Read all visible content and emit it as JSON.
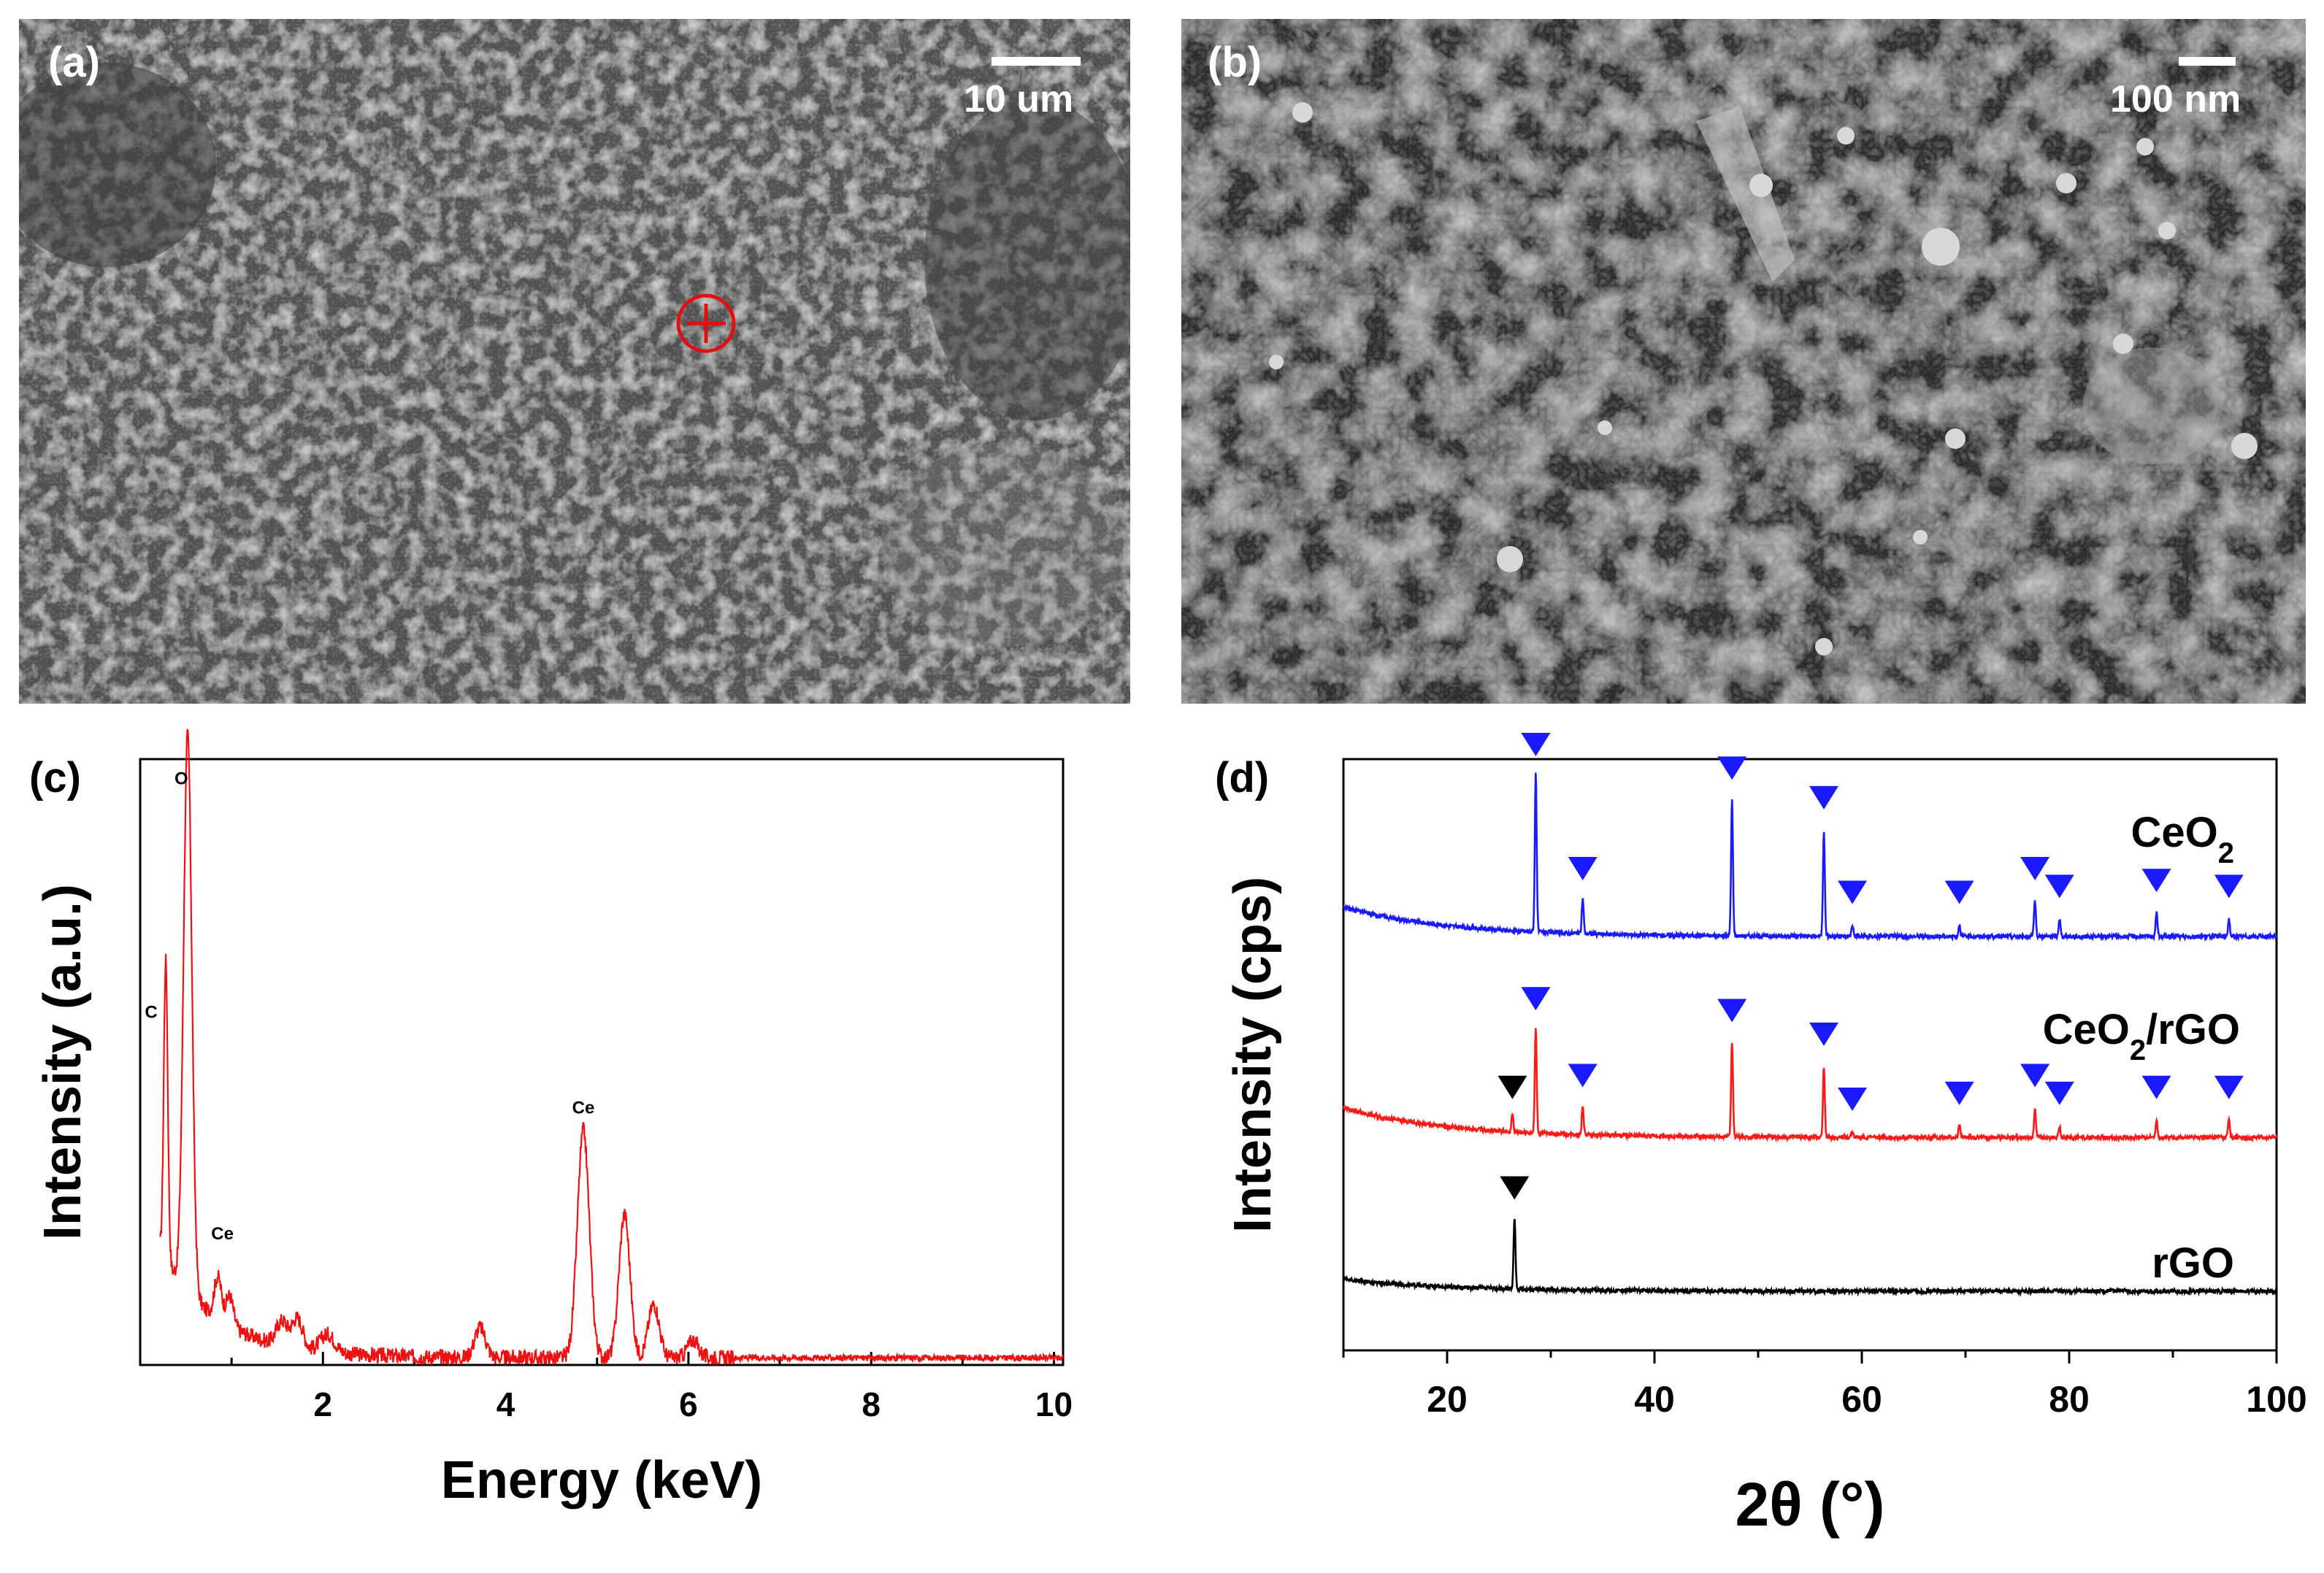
{
  "panels": {
    "a": {
      "label": "(a)",
      "scale_bar": "10 um",
      "description": "SEM image of CeO2/rGO particles; red crosshair marks EDS spot"
    },
    "b": {
      "label": "(b)",
      "scale_bar": "100 nm",
      "description": "High-magnification SEM image of CeO2/rGO sheets with CeO2 nanoparticles"
    },
    "c": {
      "label": "(c)"
    },
    "d": {
      "label": "(d)"
    }
  },
  "colors": {
    "eds_line": "#ee1111",
    "ceo2_line": "#1a1aff",
    "ceo2_rgo_line": "#ff1a1a",
    "rgo_line": "#000000",
    "ceo2_marker": "#1a1aff",
    "rgo_marker": "#000000",
    "crosshair": "#e01010"
  },
  "chart_data": [
    {
      "id": "eds",
      "type": "line",
      "title": "",
      "xlabel": "Energy (keV)",
      "ylabel": "Intensity (a.u.)",
      "xlim": [
        0.0,
        10.1
      ],
      "ylim": [
        0,
        100
      ],
      "xticks": [
        2,
        4,
        6,
        8,
        10
      ],
      "yticks": [],
      "grid": false,
      "legend": "none",
      "series": [
        {
          "name": "EDS spectrum",
          "color": "#ee1111",
          "peaks": [
            {
              "x": 0.28,
              "h": 50,
              "w": 0.022
            },
            {
              "x": 0.52,
              "h": 93,
              "w": 0.045
            },
            {
              "x": 0.85,
              "h": 7,
              "w": 0.04
            },
            {
              "x": 0.98,
              "h": 5,
              "w": 0.04
            },
            {
              "x": 1.55,
              "h": 4,
              "w": 0.06
            },
            {
              "x": 1.72,
              "h": 5,
              "w": 0.06
            },
            {
              "x": 2.05,
              "h": 3,
              "w": 0.08
            },
            {
              "x": 3.72,
              "h": 5,
              "w": 0.06
            },
            {
              "x": 4.85,
              "h": 38,
              "w": 0.065
            },
            {
              "x": 5.3,
              "h": 24,
              "w": 0.06
            },
            {
              "x": 5.62,
              "h": 9,
              "w": 0.06
            },
            {
              "x": 6.05,
              "h": 3,
              "w": 0.06
            }
          ],
          "baseline_start": 18,
          "baseline_decay": 1.6,
          "baseline_floor": 1.2
        }
      ],
      "annotations": [
        {
          "text": "C",
          "x": 0.12,
          "y": 58
        },
        {
          "text": "O",
          "x": 0.45,
          "y": 97
        },
        {
          "text": "Ce",
          "x": 0.9,
          "y": 21
        },
        {
          "text": "Ce",
          "x": 4.85,
          "y": 42
        }
      ]
    },
    {
      "id": "xrd",
      "type": "line",
      "title": "",
      "xlabel": "2θ (°)",
      "ylabel": "Intensity (cps)",
      "xlim": [
        10,
        100
      ],
      "ylim": [
        0,
        100
      ],
      "xticks": [
        20,
        40,
        60,
        80,
        100
      ],
      "yticks": [],
      "grid": false,
      "legend": "none",
      "series": [
        {
          "name": "CeO2",
          "label_main": "CeO",
          "label_sub": "2",
          "label_rest": "",
          "color": "#1a1aff",
          "offset": 70,
          "baseline_start": 5,
          "peaks": [
            {
              "x": 28.55,
              "h": 27
            },
            {
              "x": 33.08,
              "h": 6
            },
            {
              "x": 47.48,
              "h": 23
            },
            {
              "x": 56.34,
              "h": 18
            },
            {
              "x": 59.09,
              "h": 2
            },
            {
              "x": 69.41,
              "h": 2
            },
            {
              "x": 76.7,
              "h": 6
            },
            {
              "x": 79.07,
              "h": 3
            },
            {
              "x": 88.42,
              "h": 4
            },
            {
              "x": 95.41,
              "h": 3
            }
          ]
        },
        {
          "name": "CeO2/rGO",
          "label_main": "CeO",
          "label_sub": "2",
          "label_rest": "/rGO",
          "color": "#ff1a1a",
          "offset": 36,
          "baseline_start": 5,
          "peaks": [
            {
              "x": 26.3,
              "h": 3
            },
            {
              "x": 28.55,
              "h": 18
            },
            {
              "x": 33.08,
              "h": 5
            },
            {
              "x": 47.48,
              "h": 16
            },
            {
              "x": 56.34,
              "h": 12
            },
            {
              "x": 59.09,
              "h": 1
            },
            {
              "x": 69.41,
              "h": 2
            },
            {
              "x": 76.7,
              "h": 5
            },
            {
              "x": 79.07,
              "h": 2
            },
            {
              "x": 88.42,
              "h": 3
            },
            {
              "x": 95.41,
              "h": 3
            }
          ]
        },
        {
          "name": "rGO",
          "label_main": "rGO",
          "label_sub": "",
          "label_rest": "",
          "color": "#000000",
          "offset": 10,
          "baseline_start": 2,
          "peaks": [
            {
              "x": 26.5,
              "h": 12
            }
          ]
        }
      ],
      "markers": {
        "ceo2_positions": [
          28.55,
          33.08,
          47.48,
          56.34,
          59.09,
          69.41,
          76.7,
          79.07,
          88.42,
          95.41
        ],
        "rgo_positions": [
          26.5
        ]
      }
    }
  ]
}
